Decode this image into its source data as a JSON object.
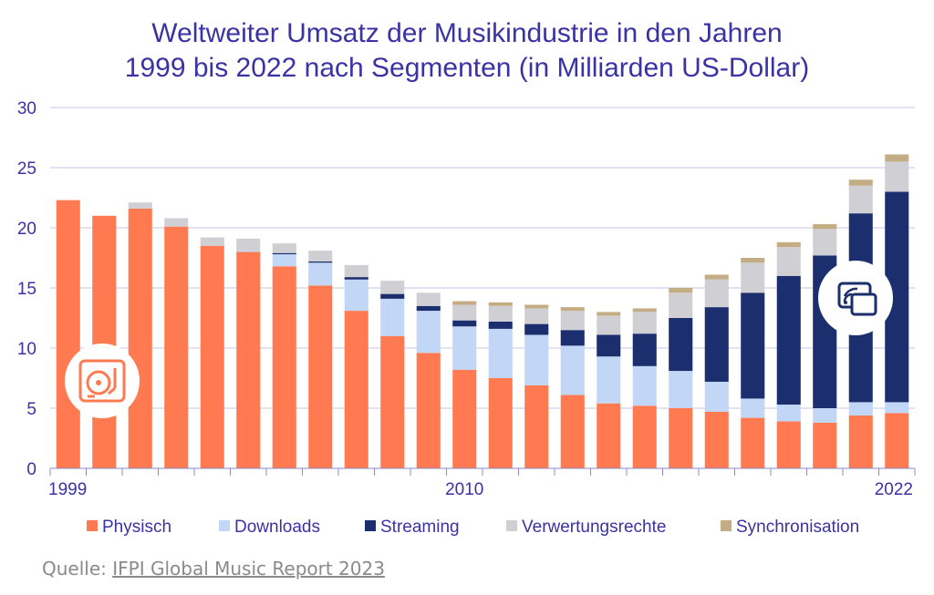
{
  "title_line1": "Weltweiter Umsatz der Musikindustrie in den Jahren",
  "title_line2": "1999 bis 2022 nach Segmenten (in Milliarden US-Dollar)",
  "source": {
    "prefix": "Quelle: ",
    "link_text": "IFPI Global Music Report 2023"
  },
  "icons": {
    "left": "turntable-icon",
    "right": "streaming-device-icon"
  },
  "colors": {
    "title": "#3b32a4",
    "axis_text": "#3b32a4",
    "gridline": "#c9c6e6"
  },
  "chart_data": {
    "type": "bar",
    "stacked": true,
    "title": "Weltweiter Umsatz der Musikindustrie in den Jahren 1999 bis 2022 nach Segmenten (in Milliarden US-Dollar)",
    "categories": [
      1999,
      2000,
      2001,
      2002,
      2003,
      2004,
      2005,
      2006,
      2007,
      2008,
      2009,
      2010,
      2011,
      2012,
      2013,
      2014,
      2015,
      2016,
      2017,
      2018,
      2019,
      2020,
      2021,
      2022
    ],
    "x_tick_labels": [
      {
        "category": 1999,
        "label": "1999"
      },
      {
        "category": 2010,
        "label": "2010"
      },
      {
        "category": 2022,
        "label": "2022"
      }
    ],
    "ylim": [
      0,
      30
    ],
    "yticks": [
      0,
      5,
      10,
      15,
      20,
      25,
      30
    ],
    "grid": true,
    "legend_position": "bottom",
    "series": [
      {
        "name": "Physisch",
        "color": "#ff7a50",
        "values": [
          22.3,
          21.0,
          21.6,
          20.1,
          18.5,
          18.0,
          16.8,
          15.2,
          13.1,
          11.0,
          9.6,
          8.2,
          7.5,
          6.9,
          6.1,
          5.4,
          5.2,
          5.0,
          4.7,
          4.2,
          3.9,
          3.8,
          4.4,
          4.6
        ]
      },
      {
        "name": "Downloads",
        "color": "#c2d6f6",
        "values": [
          0,
          0,
          0,
          0,
          0,
          0.1,
          1.0,
          1.9,
          2.6,
          3.1,
          3.5,
          3.6,
          4.1,
          4.2,
          4.1,
          3.9,
          3.3,
          3.1,
          2.5,
          1.6,
          1.4,
          1.2,
          1.1,
          0.9
        ]
      },
      {
        "name": "Streaming",
        "color": "#1b2f6e",
        "values": [
          0,
          0,
          0,
          0,
          0,
          0,
          0.1,
          0.1,
          0.2,
          0.4,
          0.4,
          0.5,
          0.6,
          0.9,
          1.3,
          1.8,
          2.7,
          4.4,
          6.2,
          8.8,
          10.7,
          12.7,
          15.7,
          17.5
        ]
      },
      {
        "name": "Verwertungsrechte",
        "color": "#cfcfd4",
        "values": [
          0,
          0,
          0.5,
          0.7,
          0.7,
          1.0,
          0.8,
          0.9,
          1.0,
          1.1,
          1.1,
          1.3,
          1.3,
          1.3,
          1.6,
          1.6,
          1.8,
          2.1,
          2.3,
          2.5,
          2.4,
          2.2,
          2.3,
          2.5
        ]
      },
      {
        "name": "Synchronisation",
        "color": "#c4ad84",
        "values": [
          0,
          0,
          0,
          0,
          0,
          0,
          0,
          0,
          0,
          0,
          0,
          0.3,
          0.3,
          0.3,
          0.3,
          0.3,
          0.3,
          0.4,
          0.4,
          0.4,
          0.4,
          0.4,
          0.5,
          0.6
        ]
      }
    ]
  }
}
